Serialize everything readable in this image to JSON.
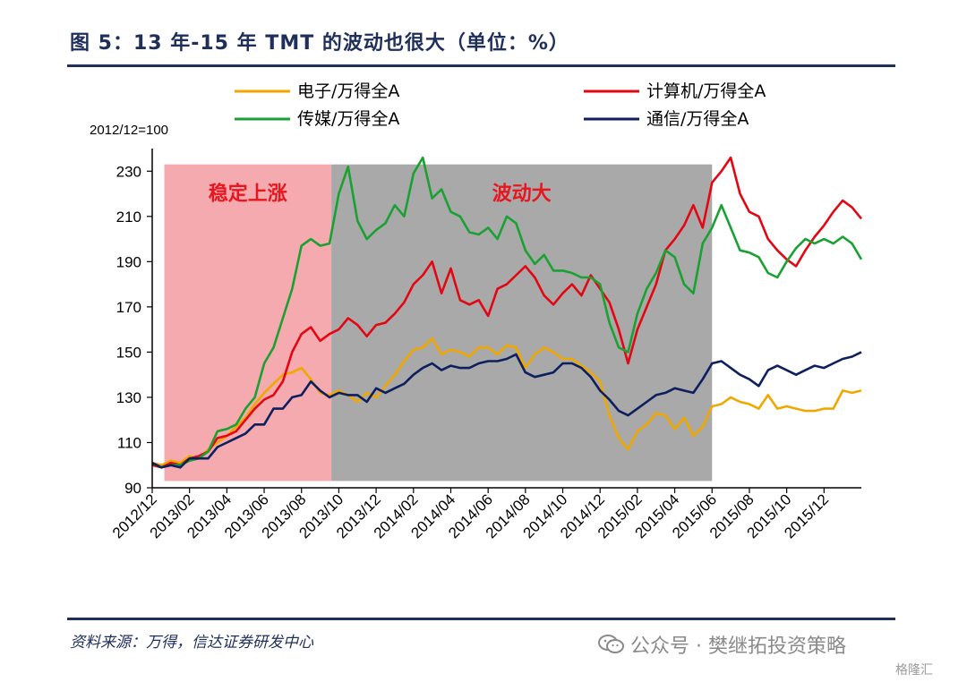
{
  "figure": {
    "title": "图 5：13 年-15 年 TMT 的波动也很大（单位：%）",
    "source": "资料来源：万得，信达证券研发中心",
    "watermark": "公众号 · 樊继拓投资策略",
    "corner_logo": "格隆汇"
  },
  "chart_data": {
    "type": "line",
    "base_label": "2012/12=100",
    "ylim": [
      90,
      240
    ],
    "yticks": [
      90,
      110,
      130,
      150,
      170,
      190,
      210,
      230
    ],
    "xticks": [
      "2012/12",
      "2013/02",
      "2013/04",
      "2013/06",
      "2013/08",
      "2013/10",
      "2013/12",
      "2014/02",
      "2014/04",
      "2014/06",
      "2014/08",
      "2014/10",
      "2014/12",
      "2015/02",
      "2015/04",
      "2015/06",
      "2015/08",
      "2015/10",
      "2015/12"
    ],
    "regions": [
      {
        "label": "稳定上涨",
        "start": 0.65,
        "end": 9.6,
        "color": "#f4aaae",
        "label_color": "#e8161e"
      },
      {
        "label": "波动大",
        "start": 9.6,
        "end": 30.0,
        "color": "#a9a9a9",
        "label_color": "#e8161e"
      }
    ],
    "series": [
      {
        "name": "电子/万得全A",
        "color": "#f0a800",
        "points": [
          [
            0,
            101
          ],
          [
            0.5,
            100
          ],
          [
            1,
            102
          ],
          [
            1.5,
            101
          ],
          [
            2,
            104
          ],
          [
            2.5,
            103
          ],
          [
            3,
            107
          ],
          [
            3.5,
            110
          ],
          [
            4,
            113
          ],
          [
            4.5,
            117
          ],
          [
            5,
            121
          ],
          [
            5.5,
            127
          ],
          [
            6,
            132
          ],
          [
            6.5,
            136
          ],
          [
            7,
            140
          ],
          [
            7.5,
            141
          ],
          [
            8,
            143
          ],
          [
            8.5,
            138
          ],
          [
            9,
            132
          ],
          [
            9.5,
            131
          ],
          [
            10,
            133
          ],
          [
            10.5,
            131
          ],
          [
            11,
            128
          ],
          [
            11.5,
            132
          ],
          [
            12,
            130
          ],
          [
            12.5,
            135
          ],
          [
            13,
            140
          ],
          [
            13.5,
            146
          ],
          [
            14,
            151
          ],
          [
            14.5,
            152
          ],
          [
            15,
            156
          ],
          [
            15.5,
            149
          ],
          [
            16,
            151
          ],
          [
            16.5,
            150
          ],
          [
            17,
            148
          ],
          [
            17.5,
            152
          ],
          [
            18,
            152
          ],
          [
            18.5,
            149
          ],
          [
            19,
            153
          ],
          [
            19.5,
            152
          ],
          [
            20,
            143
          ],
          [
            20.5,
            149
          ],
          [
            21,
            152
          ],
          [
            21.5,
            150
          ],
          [
            22,
            147
          ],
          [
            22.5,
            147
          ],
          [
            23,
            144
          ],
          [
            23.5,
            141
          ],
          [
            24,
            137
          ],
          [
            24.5,
            122
          ],
          [
            25,
            112
          ],
          [
            25.5,
            107
          ],
          [
            26,
            115
          ],
          [
            26.5,
            118
          ],
          [
            27,
            123
          ],
          [
            27.5,
            122
          ],
          [
            28,
            116
          ],
          [
            28.5,
            121
          ],
          [
            29,
            113
          ],
          [
            29.5,
            117
          ],
          [
            30,
            126
          ],
          [
            30.5,
            127
          ],
          [
            31,
            130
          ],
          [
            31.5,
            128
          ],
          [
            32,
            127
          ],
          [
            32.5,
            125
          ],
          [
            33,
            131
          ],
          [
            33.5,
            125
          ],
          [
            34,
            126
          ],
          [
            34.5,
            125
          ],
          [
            35,
            124
          ],
          [
            35.5,
            124
          ],
          [
            36,
            125
          ],
          [
            36.5,
            125
          ],
          [
            37,
            133
          ],
          [
            37.5,
            132
          ],
          [
            38,
            133
          ]
        ]
      },
      {
        "name": "计算机/万得全A",
        "color": "#e30613",
        "points": [
          [
            0,
            100
          ],
          [
            0.5,
            99
          ],
          [
            1,
            101
          ],
          [
            1.5,
            100
          ],
          [
            2,
            103
          ],
          [
            2.5,
            104
          ],
          [
            3,
            106
          ],
          [
            3.5,
            112
          ],
          [
            4,
            113
          ],
          [
            4.5,
            115
          ],
          [
            5,
            120
          ],
          [
            5.5,
            125
          ],
          [
            6,
            129
          ],
          [
            6.5,
            131
          ],
          [
            7,
            137
          ],
          [
            7.5,
            150
          ],
          [
            8,
            158
          ],
          [
            8.5,
            161
          ],
          [
            9,
            155
          ],
          [
            9.5,
            158
          ],
          [
            10,
            160
          ],
          [
            10.5,
            165
          ],
          [
            11,
            162
          ],
          [
            11.5,
            157
          ],
          [
            12,
            162
          ],
          [
            12.5,
            163
          ],
          [
            13,
            167
          ],
          [
            13.5,
            172
          ],
          [
            14,
            180
          ],
          [
            14.5,
            184
          ],
          [
            15,
            190
          ],
          [
            15.5,
            176
          ],
          [
            16,
            187
          ],
          [
            16.5,
            173
          ],
          [
            17,
            171
          ],
          [
            17.5,
            173
          ],
          [
            18,
            166
          ],
          [
            18.5,
            178
          ],
          [
            19,
            180
          ],
          [
            19.5,
            184
          ],
          [
            20,
            188
          ],
          [
            20.5,
            183
          ],
          [
            21,
            175
          ],
          [
            21.5,
            171
          ],
          [
            22,
            176
          ],
          [
            22.5,
            180
          ],
          [
            23,
            175
          ],
          [
            23.5,
            184
          ],
          [
            24,
            178
          ],
          [
            24.5,
            172
          ],
          [
            25,
            160
          ],
          [
            25.5,
            145
          ],
          [
            26,
            160
          ],
          [
            26.5,
            170
          ],
          [
            27,
            180
          ],
          [
            27.5,
            195
          ],
          [
            28,
            200
          ],
          [
            28.5,
            206
          ],
          [
            29,
            215
          ],
          [
            29.5,
            205
          ],
          [
            30,
            225
          ],
          [
            30.5,
            230
          ],
          [
            31,
            236
          ],
          [
            31.5,
            220
          ],
          [
            32,
            212
          ],
          [
            32.5,
            210
          ],
          [
            33,
            200
          ],
          [
            33.5,
            195
          ],
          [
            34,
            191
          ],
          [
            34.5,
            188
          ],
          [
            35,
            195
          ],
          [
            35.5,
            201
          ],
          [
            36,
            206
          ],
          [
            36.5,
            212
          ],
          [
            37,
            217
          ],
          [
            37.5,
            214
          ],
          [
            38,
            209
          ]
        ]
      },
      {
        "name": "传媒/万得全A",
        "color": "#1aa132",
        "points": [
          [
            0,
            101
          ],
          [
            0.5,
            99
          ],
          [
            1,
            100
          ],
          [
            1.5,
            100
          ],
          [
            2,
            102
          ],
          [
            2.5,
            103
          ],
          [
            3,
            106
          ],
          [
            3.5,
            115
          ],
          [
            4,
            116
          ],
          [
            4.5,
            118
          ],
          [
            5,
            125
          ],
          [
            5.5,
            130
          ],
          [
            6,
            145
          ],
          [
            6.5,
            152
          ],
          [
            7,
            165
          ],
          [
            7.5,
            178
          ],
          [
            8,
            197
          ],
          [
            8.5,
            200
          ],
          [
            9,
            197
          ],
          [
            9.5,
            198
          ],
          [
            10,
            220
          ],
          [
            10.5,
            232
          ],
          [
            11,
            208
          ],
          [
            11.5,
            200
          ],
          [
            12,
            204
          ],
          [
            12.5,
            207
          ],
          [
            13,
            215
          ],
          [
            13.5,
            210
          ],
          [
            14,
            229
          ],
          [
            14.5,
            236
          ],
          [
            15,
            218
          ],
          [
            15.5,
            222
          ],
          [
            16,
            212
          ],
          [
            16.5,
            210
          ],
          [
            17,
            203
          ],
          [
            17.5,
            202
          ],
          [
            18,
            205
          ],
          [
            18.5,
            200
          ],
          [
            19,
            210
          ],
          [
            19.5,
            207
          ],
          [
            20,
            195
          ],
          [
            20.5,
            189
          ],
          [
            21,
            193
          ],
          [
            21.5,
            186
          ],
          [
            22,
            186
          ],
          [
            22.5,
            185
          ],
          [
            23,
            183
          ],
          [
            23.5,
            183
          ],
          [
            24,
            180
          ],
          [
            24.5,
            163
          ],
          [
            25,
            152
          ],
          [
            25.5,
            150
          ],
          [
            26,
            167
          ],
          [
            26.5,
            178
          ],
          [
            27,
            185
          ],
          [
            27.5,
            195
          ],
          [
            28,
            192
          ],
          [
            28.5,
            180
          ],
          [
            29,
            176
          ],
          [
            29.5,
            198
          ],
          [
            30,
            205
          ],
          [
            30.5,
            215
          ],
          [
            31,
            205
          ],
          [
            31.5,
            195
          ],
          [
            32,
            194
          ],
          [
            32.5,
            192
          ],
          [
            33,
            185
          ],
          [
            33.5,
            183
          ],
          [
            34,
            190
          ],
          [
            34.5,
            196
          ],
          [
            35,
            200
          ],
          [
            35.5,
            198
          ],
          [
            36,
            200
          ],
          [
            36.5,
            198
          ],
          [
            37,
            201
          ],
          [
            37.5,
            198
          ],
          [
            38,
            191
          ]
        ]
      },
      {
        "name": "通信/万得全A",
        "color": "#0d1f5e",
        "points": [
          [
            0,
            101
          ],
          [
            0.5,
            99
          ],
          [
            1,
            100
          ],
          [
            1.5,
            99
          ],
          [
            2,
            103
          ],
          [
            2.5,
            103
          ],
          [
            3,
            103
          ],
          [
            3.5,
            108
          ],
          [
            4,
            110
          ],
          [
            4.5,
            112
          ],
          [
            5,
            114
          ],
          [
            5.5,
            118
          ],
          [
            6,
            118
          ],
          [
            6.5,
            125
          ],
          [
            7,
            125
          ],
          [
            7.5,
            130
          ],
          [
            8,
            131
          ],
          [
            8.5,
            137
          ],
          [
            9,
            133
          ],
          [
            9.5,
            130
          ],
          [
            10,
            132
          ],
          [
            10.5,
            131
          ],
          [
            11,
            131
          ],
          [
            11.5,
            128
          ],
          [
            12,
            134
          ],
          [
            12.5,
            132
          ],
          [
            13,
            134
          ],
          [
            13.5,
            136
          ],
          [
            14,
            140
          ],
          [
            14.5,
            143
          ],
          [
            15,
            145
          ],
          [
            15.5,
            142
          ],
          [
            16,
            144
          ],
          [
            16.5,
            143
          ],
          [
            17,
            143
          ],
          [
            17.5,
            145
          ],
          [
            18,
            146
          ],
          [
            18.5,
            146
          ],
          [
            19,
            147
          ],
          [
            19.5,
            149
          ],
          [
            20,
            141
          ],
          [
            20.5,
            139
          ],
          [
            21,
            140
          ],
          [
            21.5,
            141
          ],
          [
            22,
            145
          ],
          [
            22.5,
            145
          ],
          [
            23,
            143
          ],
          [
            23.5,
            139
          ],
          [
            24,
            133
          ],
          [
            24.5,
            129
          ],
          [
            25,
            124
          ],
          [
            25.5,
            122
          ],
          [
            26,
            125
          ],
          [
            26.5,
            128
          ],
          [
            27,
            131
          ],
          [
            27.5,
            132
          ],
          [
            28,
            134
          ],
          [
            28.5,
            133
          ],
          [
            29,
            132
          ],
          [
            29.5,
            138
          ],
          [
            30,
            145
          ],
          [
            30.5,
            146
          ],
          [
            31,
            143
          ],
          [
            31.5,
            140
          ],
          [
            32,
            138
          ],
          [
            32.5,
            135
          ],
          [
            33,
            142
          ],
          [
            33.5,
            144
          ],
          [
            34,
            142
          ],
          [
            34.5,
            140
          ],
          [
            35,
            142
          ],
          [
            35.5,
            144
          ],
          [
            36,
            143
          ],
          [
            36.5,
            145
          ],
          [
            37,
            147
          ],
          [
            37.5,
            148
          ],
          [
            38,
            150
          ]
        ]
      }
    ],
    "legend": {
      "placement": "top",
      "entries": [
        "电子/万得全A",
        "计算机/万得全A",
        "传媒/万得全A",
        "通信/万得全A"
      ]
    }
  }
}
